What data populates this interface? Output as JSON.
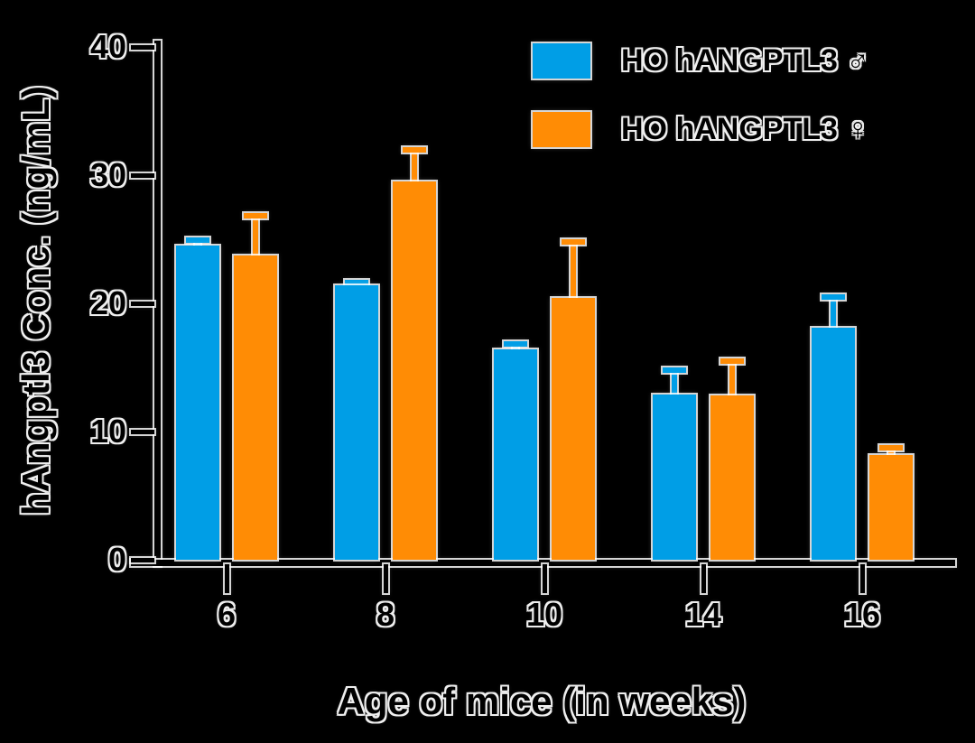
{
  "figure": {
    "background": "#000000",
    "title": "",
    "x_axis_title": "Age of mice (in weeks)",
    "y_axis_title": "hAngptl3 Conc. (ng/mL)"
  },
  "legend": {
    "position": "top-right",
    "items": [
      {
        "id": "male",
        "label": "HO hANGPTL3 ♂",
        "color": "#009EE6"
      },
      {
        "id": "female",
        "label": "HO hANGPTL3 ♀",
        "color": "#FF8C05"
      }
    ]
  },
  "chart_data": {
    "type": "bar",
    "title": "",
    "xlabel": "Age of mice (in weeks)",
    "ylabel": "hAngptl3 Conc. (ng/mL)",
    "categories": [
      6,
      8,
      10,
      14,
      16
    ],
    "ylim": [
      0,
      40
    ],
    "yticks": [
      0,
      10,
      20,
      30,
      40
    ],
    "grid": false,
    "legend_position": "top-right",
    "error_bars": "upper-only (SEM)",
    "series": [
      {
        "id": "male",
        "name": "HO hANGPTL3 ♂",
        "color": "#009EE6",
        "values": [
          24.5,
          21.4,
          16.4,
          12.9,
          18.1
        ],
        "errors": [
          0.4,
          0.2,
          0.4,
          1.9,
          2.4
        ]
      },
      {
        "id": "female",
        "name": "HO hANGPTL3 ♀",
        "color": "#FF8C05",
        "values": [
          23.7,
          29.5,
          20.4,
          12.8,
          8.2
        ],
        "errors": [
          3.1,
          2.5,
          4.4,
          2.7,
          0.5
        ]
      }
    ]
  }
}
